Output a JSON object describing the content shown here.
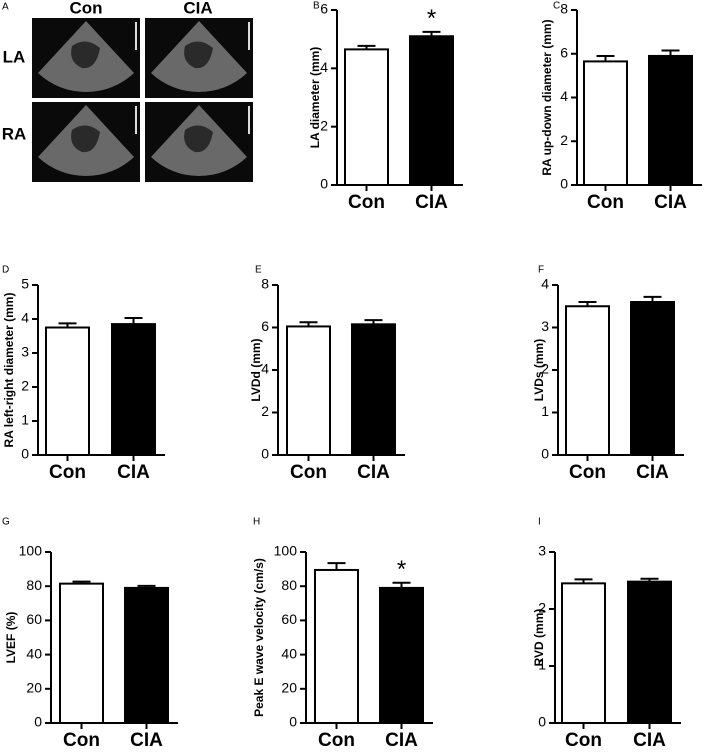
{
  "image_panel": {
    "label": "A",
    "columns": [
      "Con",
      "CIA"
    ],
    "rows": [
      "LA",
      "RA"
    ]
  },
  "chart_data": [
    {
      "type": "bar",
      "label": "B",
      "y_label": "LA diameter (mm)",
      "categories": [
        "Con",
        "CIA"
      ],
      "values": [
        4.65,
        5.1
      ],
      "errors": [
        0.12,
        0.15
      ],
      "colors": [
        "#ffffff",
        "#000000"
      ],
      "ylim": [
        0,
        6
      ],
      "yticks": [
        0,
        2,
        4,
        6
      ],
      "annotation": {
        "text": "*",
        "category": "CIA"
      }
    },
    {
      "type": "bar",
      "label": "C",
      "y_label": "RA up-down diameter (mm)",
      "categories": [
        "Con",
        "CIA"
      ],
      "values": [
        5.65,
        5.9
      ],
      "errors": [
        0.25,
        0.25
      ],
      "colors": [
        "#ffffff",
        "#000000"
      ],
      "ylim": [
        0,
        8
      ],
      "yticks": [
        0,
        2,
        4,
        6,
        8
      ]
    },
    {
      "type": "bar",
      "label": "D",
      "y_label": "RA left-right diameter (mm)",
      "categories": [
        "Con",
        "CIA"
      ],
      "values": [
        3.75,
        3.85
      ],
      "errors": [
        0.12,
        0.18
      ],
      "colors": [
        "#ffffff",
        "#000000"
      ],
      "ylim": [
        0,
        5
      ],
      "yticks": [
        0,
        1,
        2,
        3,
        4,
        5
      ]
    },
    {
      "type": "bar",
      "label": "E",
      "y_label": "LVDd (mm)",
      "categories": [
        "Con",
        "CIA"
      ],
      "values": [
        6.05,
        6.15
      ],
      "errors": [
        0.2,
        0.2
      ],
      "colors": [
        "#ffffff",
        "#000000"
      ],
      "ylim": [
        0,
        8
      ],
      "yticks": [
        0,
        2,
        4,
        6,
        8
      ]
    },
    {
      "type": "bar",
      "label": "F",
      "y_label": "LVDs (mm)",
      "categories": [
        "Con",
        "CIA"
      ],
      "values": [
        3.5,
        3.6
      ],
      "errors": [
        0.1,
        0.12
      ],
      "colors": [
        "#ffffff",
        "#000000"
      ],
      "ylim": [
        0,
        4
      ],
      "yticks": [
        0,
        1,
        2,
        3,
        4
      ]
    },
    {
      "type": "bar",
      "label": "G",
      "y_label": "LVEF (%)",
      "categories": [
        "Con",
        "CIA"
      ],
      "values": [
        81.5,
        79
      ],
      "errors": [
        1.2,
        1.2
      ],
      "colors": [
        "#ffffff",
        "#000000"
      ],
      "ylim": [
        0,
        100
      ],
      "yticks": [
        0,
        20,
        40,
        60,
        80,
        100
      ]
    },
    {
      "type": "bar",
      "label": "H",
      "y_label": "Peak E wave velocity (cm/s)",
      "categories": [
        "Con",
        "CIA"
      ],
      "values": [
        89.5,
        79
      ],
      "errors": [
        4,
        3
      ],
      "colors": [
        "#ffffff",
        "#000000"
      ],
      "ylim": [
        0,
        100
      ],
      "yticks": [
        0,
        20,
        40,
        60,
        80,
        100
      ],
      "annotation": {
        "text": "*",
        "category": "CIA"
      }
    },
    {
      "type": "bar",
      "label": "I",
      "y_label": "RVD (mm)",
      "categories": [
        "Con",
        "CIA"
      ],
      "values": [
        2.45,
        2.48
      ],
      "errors": [
        0.07,
        0.05
      ],
      "colors": [
        "#ffffff",
        "#000000"
      ],
      "ylim": [
        0,
        3
      ],
      "yticks": [
        0,
        1,
        2,
        3
      ]
    }
  ]
}
